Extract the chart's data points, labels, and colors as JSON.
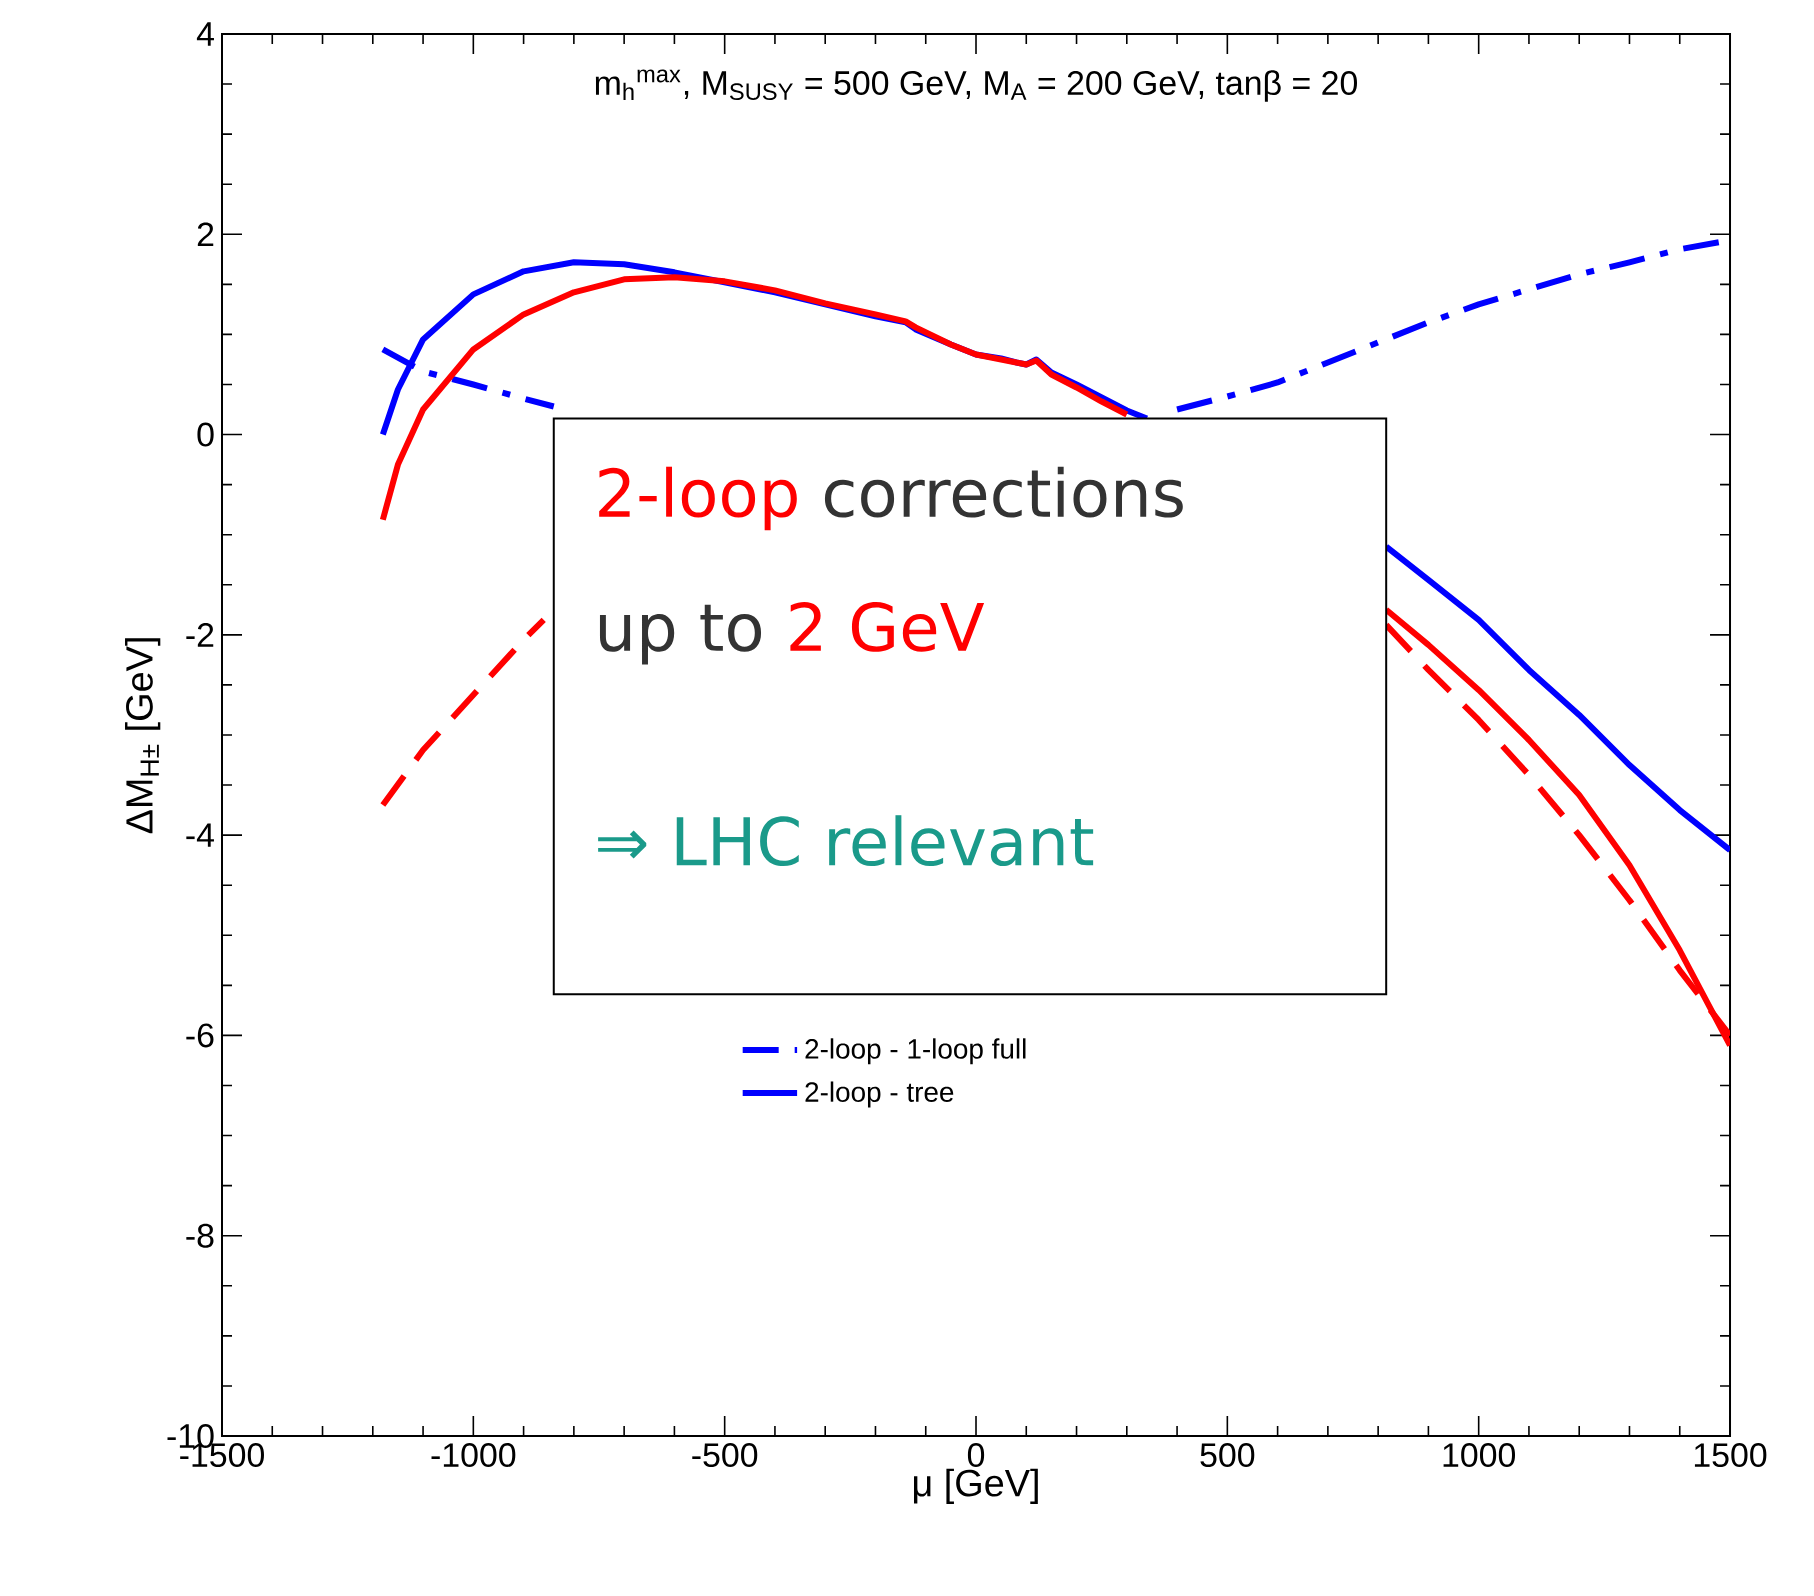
{
  "chart_data": {
    "type": "line",
    "xlabel": "μ [GeV]",
    "ylabel": "ΔM$_{H±}$ [GeV]",
    "xlim": [
      -1500,
      1500
    ],
    "ylim": [
      -10,
      4
    ],
    "xticks": [
      -1500,
      -1000,
      -500,
      0,
      500,
      1000,
      1500
    ],
    "yticks": [
      -10,
      -8,
      -6,
      -4,
      -2,
      0,
      2,
      4
    ],
    "grid": false,
    "legend": "bottom",
    "marker": "none",
    "annotations": [
      "m$_{h}$$^{max}$, M$_{SUSY}$ = 500 GeV, M$_{A}$ = 200 GeV, tanβ = 20",
      "2-loop",
      "corrections",
      "up to",
      "2 GeV",
      "⇒ LHC relevant"
    ],
    "series": [
      {
        "name": "2-loop - 1-loop full",
        "color": "#0000ff",
        "line_style": "dashdot",
        "x": [
          -1180,
          -1100,
          -1000,
          -900,
          -840,
          0,
          400,
          500,
          600,
          700,
          800,
          900,
          1000,
          1100,
          1200,
          1300,
          1400,
          1500
        ],
        "values": [
          0.85,
          0.63,
          0.5,
          0.36,
          0.28,
          null,
          0.25,
          0.38,
          0.52,
          0.72,
          0.92,
          1.12,
          1.3,
          1.45,
          1.6,
          1.72,
          1.85,
          1.94
        ]
      },
      {
        "name": "2-loop - tree",
        "color": "#0000ff",
        "line_style": "solid",
        "x": [
          -1180,
          -1150,
          -1100,
          -1000,
          -900,
          -800,
          -700,
          -600,
          -500,
          -400,
          -300,
          -200,
          -140,
          -120,
          -50,
          0,
          50,
          80,
          100,
          120,
          150,
          200,
          250,
          300,
          340,
          600,
          816,
          900,
          1000,
          1100,
          1200,
          1300,
          1400,
          1500
        ],
        "values": [
          0,
          0.45,
          0.95,
          1.4,
          1.63,
          1.72,
          1.7,
          1.62,
          1.52,
          1.42,
          1.3,
          1.18,
          1.12,
          1.05,
          0.9,
          0.8,
          0.76,
          0.72,
          0.7,
          0.75,
          0.62,
          0.5,
          0.37,
          0.24,
          0.16,
          null,
          -1.12,
          -1.45,
          -1.85,
          -2.35,
          -2.8,
          -3.3,
          -3.75,
          -4.15
        ]
      },
      {
        "color": "#ff0000",
        "line_style": "solid",
        "x": [
          -1180,
          -1150,
          -1100,
          -1000,
          -900,
          -800,
          -700,
          -600,
          -500,
          -400,
          -300,
          -200,
          -140,
          -120,
          -50,
          0,
          50,
          80,
          100,
          120,
          150,
          200,
          250,
          300,
          600,
          816,
          900,
          1000,
          1100,
          1200,
          1300,
          1400,
          1500
        ],
        "values": [
          -0.85,
          -0.3,
          0.25,
          0.85,
          1.2,
          1.42,
          1.55,
          1.57,
          1.53,
          1.44,
          1.31,
          1.2,
          1.13,
          1.07,
          0.9,
          0.8,
          0.75,
          0.72,
          0.7,
          0.74,
          0.6,
          0.47,
          0.33,
          0.2,
          null,
          -1.75,
          -2.1,
          -2.55,
          -3.05,
          -3.6,
          -4.3,
          -5.15,
          -6.1
        ]
      },
      {
        "color": "#ff0000",
        "line_style": "dashed",
        "x": [
          -1180,
          -1100,
          -1000,
          -900,
          -860,
          0,
          816,
          900,
          1000,
          1100,
          1200,
          1300,
          1400,
          1500
        ],
        "values": [
          -3.7,
          -3.15,
          -2.6,
          -2.05,
          -1.85,
          null,
          -1.9,
          -2.35,
          -2.85,
          -3.4,
          -4.0,
          -4.65,
          -5.35,
          -6.0
        ]
      }
    ]
  }
}
